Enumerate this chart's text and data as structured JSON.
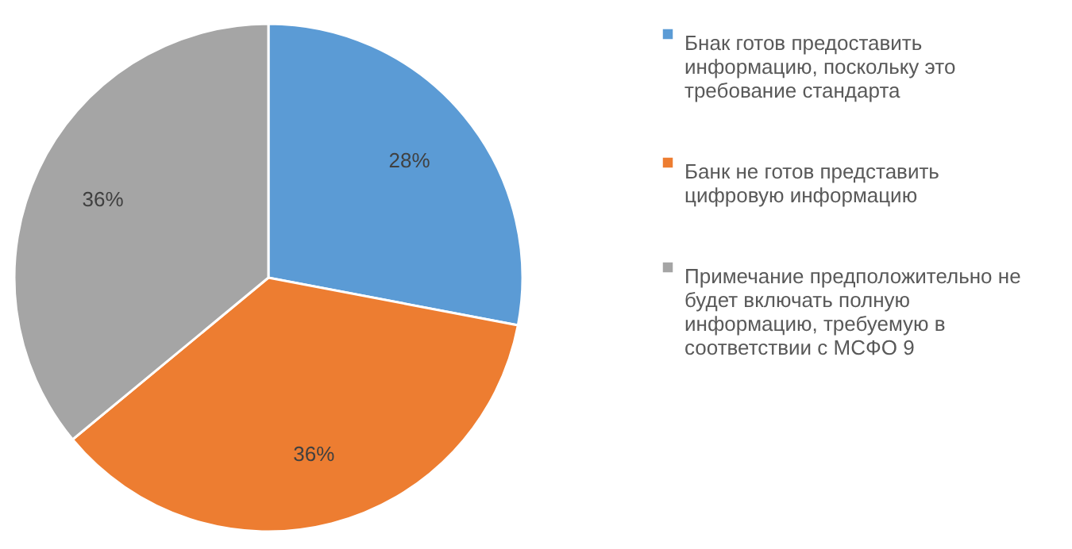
{
  "chart_data": {
    "type": "pie",
    "categories": [
      "Бнак готов предоставить информацию, поскольку  это требование стандарта",
      "Банк не готов представить цифровую информацию",
      "Примечание предположительно не будет включать полную информацию, требуемую в соответствии с МСФО 9"
    ],
    "values": [
      28,
      36,
      36
    ],
    "colors": [
      "#5b9bd5",
      "#ed7d31",
      "#a5a5a5"
    ],
    "value_labels": [
      "28%",
      "36%",
      "36%"
    ],
    "legend": "right"
  }
}
